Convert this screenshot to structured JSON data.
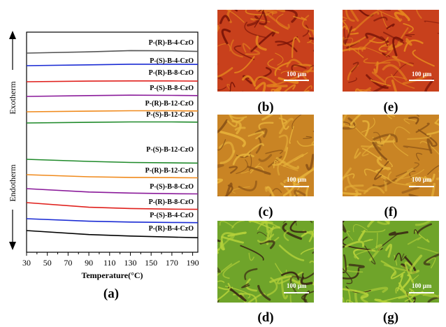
{
  "figure": {
    "panel_captions": [
      "(a)",
      "(b)",
      "(c)",
      "(d)",
      "(e)",
      "(f)",
      "(g)"
    ],
    "scale_bar_label": "100 μm",
    "micrograph_palettes": {
      "row1": {
        "base": "#c8401c",
        "a": "#e4851e",
        "b": "#7a1408"
      },
      "row2": {
        "base": "#c98424",
        "a": "#e6b13a",
        "b": "#8a5216"
      },
      "row3": {
        "base": "#6fa42a",
        "a": "#b6d23a",
        "b": "#3a2a14"
      }
    }
  },
  "chart_data": {
    "type": "line",
    "xlabel": "Temperature(°C)",
    "ylabel_top": "Exotherm",
    "ylabel_bottom": "Endotherm",
    "xlim": [
      30,
      195
    ],
    "xticks": [
      30,
      50,
      70,
      90,
      110,
      130,
      150,
      170,
      190
    ],
    "grid": false,
    "series": [
      {
        "name": "P-(R)-B-4-CzO",
        "group": "cooling",
        "color": "#555555",
        "x": [
          30,
          90,
          130,
          170,
          195
        ],
        "y": [
          0,
          0.6,
          1.2,
          1.1,
          0.8
        ]
      },
      {
        "name": "P-(S)-B-4-CzO",
        "group": "cooling",
        "color": "#1a2bd4",
        "x": [
          30,
          90,
          130,
          170,
          195
        ],
        "y": [
          0,
          0.4,
          0.7,
          0.7,
          0.6
        ]
      },
      {
        "name": "P-(R)-B-8-CzO",
        "group": "cooling",
        "color": "#e0201c",
        "x": [
          30,
          90,
          130,
          170,
          195
        ],
        "y": [
          0,
          0.3,
          0.4,
          0.4,
          0.3
        ]
      },
      {
        "name": "P-(S)-B-8-CzO",
        "group": "cooling",
        "color": "#8a1a9a",
        "x": [
          30,
          90,
          130,
          170,
          195
        ],
        "y": [
          0,
          0.4,
          0.6,
          0.5,
          0.4
        ]
      },
      {
        "name": "P-(R)-B-12-CzO",
        "group": "cooling",
        "color": "#f08a1c",
        "x": [
          30,
          90,
          130,
          170,
          195
        ],
        "y": [
          0,
          0.3,
          0.5,
          0.5,
          0.4
        ]
      },
      {
        "name": "P-(S)-B-12-CzO",
        "group": "cooling",
        "color": "#1f8a2a",
        "x": [
          30,
          90,
          130,
          170,
          195
        ],
        "y": [
          0,
          0.3,
          0.5,
          0.5,
          0.4
        ]
      },
      {
        "name": "P-(S)-B-12-CzO",
        "group": "heating",
        "color": "#1f8a2a",
        "x": [
          30,
          90,
          130,
          170,
          195
        ],
        "y": [
          0,
          -1.0,
          -1.5,
          -1.7,
          -1.8
        ]
      },
      {
        "name": "P-(R)-B-12-CzO",
        "group": "heating",
        "color": "#f08a1c",
        "x": [
          30,
          90,
          130,
          170,
          195
        ],
        "y": [
          0,
          -1.0,
          -1.3,
          -1.4,
          -1.5
        ]
      },
      {
        "name": "P-(S)-B-8-CzO",
        "group": "heating",
        "color": "#8a1a9a",
        "x": [
          30,
          90,
          130,
          170,
          195
        ],
        "y": [
          0,
          -1.6,
          -2.1,
          -2.4,
          -2.5
        ]
      },
      {
        "name": "P-(R)-B-8-CzO",
        "group": "heating",
        "color": "#e0201c",
        "x": [
          30,
          90,
          130,
          170,
          195
        ],
        "y": [
          0,
          -2.2,
          -2.8,
          -3.1,
          -3.2
        ]
      },
      {
        "name": "P-(S)-B-4-CzO",
        "group": "heating",
        "color": "#1a2bd4",
        "x": [
          30,
          90,
          130,
          170,
          195
        ],
        "y": [
          0,
          -1.2,
          -1.6,
          -1.8,
          -1.9
        ]
      },
      {
        "name": "P-(R)-B-4-CzO",
        "group": "heating",
        "color": "#000000",
        "x": [
          30,
          90,
          130,
          170,
          195
        ],
        "y": [
          0,
          -1.9,
          -2.6,
          -3.1,
          -3.4
        ]
      }
    ]
  }
}
